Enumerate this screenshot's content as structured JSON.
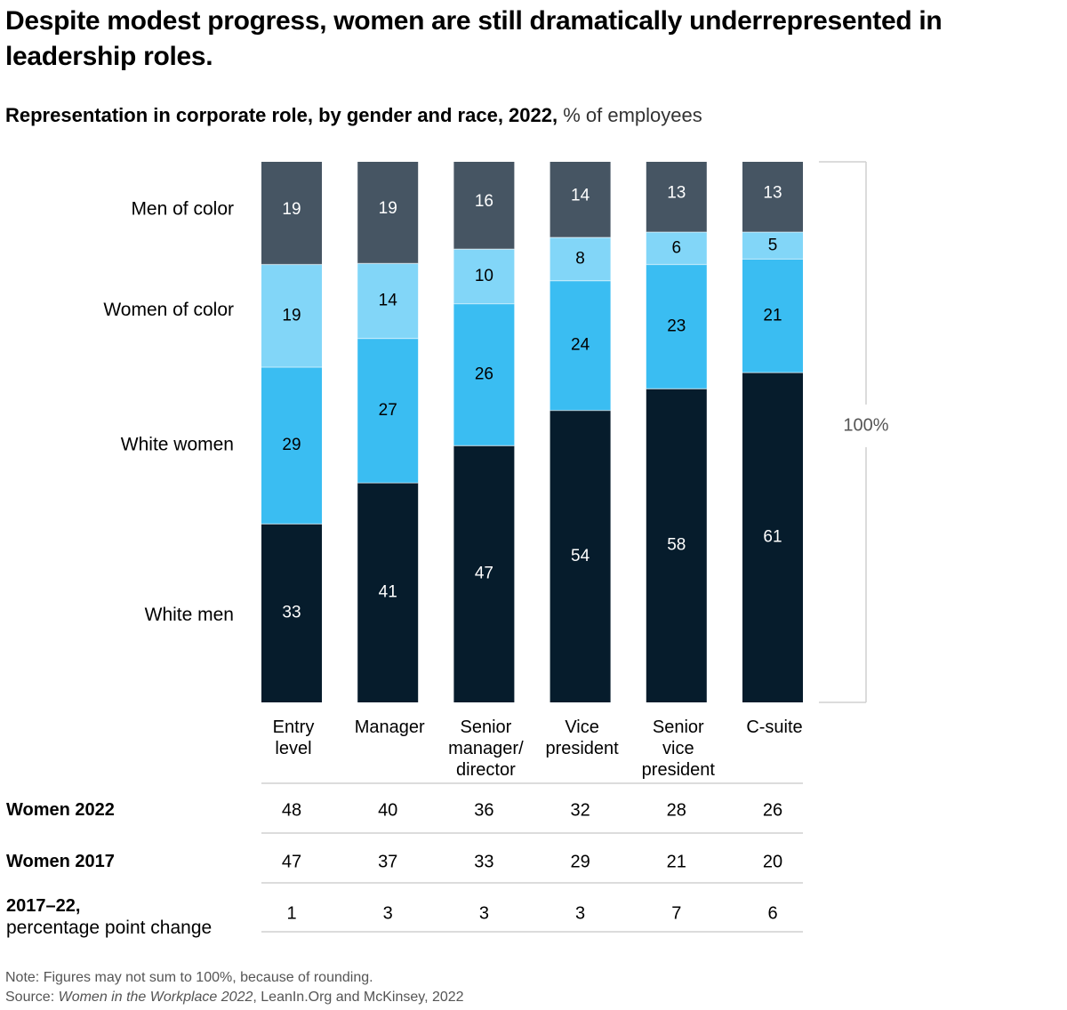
{
  "title": "Despite modest progress, women are still dramatically underrepresented in leadership roles.",
  "subtitle_bold": "Representation in corporate role, by gender and race, 2022,",
  "subtitle_light": " % of employees",
  "bracket_label": "100%",
  "colors": {
    "Men of color": "#465563",
    "Women of color": "#82d6f8",
    "White women": "#3abdf2",
    "White men": "#061c2c",
    "grid": "#d0d0d0"
  },
  "chart_data": {
    "type": "bar",
    "stacked": true,
    "title": "Representation in corporate role, by gender and race, 2022, % of employees",
    "categories": [
      [
        "Entry",
        "level"
      ],
      [
        "Manager"
      ],
      [
        "Senior",
        "manager/",
        "director"
      ],
      [
        "Vice",
        "president"
      ],
      [
        "Senior",
        "vice",
        "president"
      ],
      [
        "C-suite"
      ]
    ],
    "series": [
      {
        "name": "Men of color",
        "values": [
          19,
          19,
          16,
          14,
          13,
          13
        ]
      },
      {
        "name": "Women of color",
        "values": [
          19,
          14,
          10,
          8,
          6,
          5
        ]
      },
      {
        "name": "White women",
        "values": [
          29,
          27,
          26,
          24,
          23,
          21
        ]
      },
      {
        "name": "White men",
        "values": [
          33,
          41,
          47,
          54,
          58,
          61
        ]
      }
    ],
    "stack_order_top_to_bottom": [
      "Men of color",
      "Women of color",
      "White women",
      "White men"
    ],
    "ylim": [
      0,
      100
    ],
    "legend": "left",
    "table": [
      {
        "label": "Women 2022",
        "sub": "",
        "values": [
          48,
          40,
          36,
          32,
          28,
          26
        ]
      },
      {
        "label": "Women 2017",
        "sub": "",
        "values": [
          47,
          37,
          33,
          29,
          21,
          20
        ]
      },
      {
        "label": "2017–22,",
        "sub": "percentage point change",
        "values": [
          1,
          3,
          3,
          3,
          7,
          6
        ]
      }
    ]
  },
  "note": "Note: Figures may not sum to 100%, because of rounding.",
  "source_prefix": "Source: ",
  "source_title": "Women in the Workplace 2022",
  "source_suffix": ", LeanIn.Org and McKinsey, 2022"
}
